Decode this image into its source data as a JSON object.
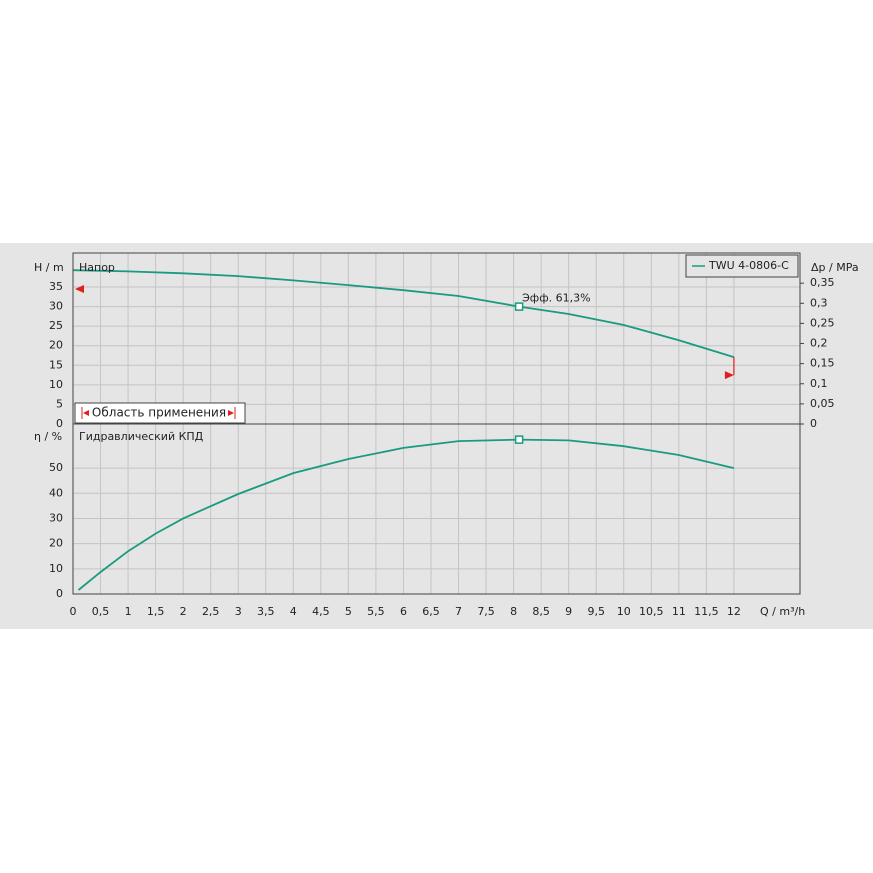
{
  "chart_data": [
    {
      "type": "line",
      "title": "Напор",
      "ylabel": "H / m",
      "y2label": "Δp / MPa",
      "x": [
        0,
        1,
        2,
        3,
        4,
        5,
        6,
        7,
        8.1,
        9,
        10,
        11,
        12
      ],
      "series": [
        {
          "name": "TWU 4-0806-C",
          "color": "#1a9a80",
          "values": [
            39.3,
            39,
            38.5,
            37.8,
            36.7,
            35.5,
            34.2,
            32.7,
            30,
            28.1,
            25.3,
            21.4,
            17.1
          ]
        }
      ],
      "ylim": [
        0,
        43.7
      ],
      "yticks": [
        0,
        5,
        10,
        15,
        20,
        25,
        30,
        35
      ],
      "y2lim": [
        0,
        0.425
      ],
      "y2ticks": [
        0,
        {
          "value": 0.05,
          "label": "0,05"
        },
        {
          "value": 0.1,
          "label": "0,1"
        },
        {
          "value": 0.15,
          "label": "0,15"
        },
        {
          "value": 0.2,
          "label": "0,2"
        },
        {
          "value": 0.25,
          "label": "0,25"
        },
        {
          "value": 0.3,
          "label": "0,3"
        },
        {
          "value": 0.35,
          "label": "0,35"
        }
      ],
      "duty_point": {
        "x": 8.1,
        "y": 30
      },
      "annotation": "Эфф.  61,3%",
      "application_range": {
        "label": "Область применения",
        "color": "#e0201a",
        "markers": [
          {
            "x": 0,
            "y": 34.5
          },
          {
            "x": 12,
            "y": 12.5
          }
        ]
      }
    },
    {
      "type": "line",
      "title": "Гидравлический КПД",
      "ylabel": "η / %",
      "xlabel": "Q / m³/h",
      "x": [
        0.1,
        0.5,
        1,
        1.5,
        2,
        3,
        4,
        5,
        6,
        7,
        8.1,
        9,
        10,
        11,
        12
      ],
      "series": [
        {
          "color": "#1a9a80",
          "values": [
            1.6,
            8.7,
            17,
            24,
            30,
            39.7,
            48,
            53.6,
            58,
            60.7,
            61.3,
            61,
            58.7,
            55.2,
            50
          ]
        }
      ],
      "ylim": [
        0,
        67.5
      ],
      "yticks": [
        0,
        10,
        20,
        30,
        40,
        50
      ],
      "xlim": [
        0,
        13.2
      ],
      "xticks": [
        0,
        {
          "value": 0.5,
          "label": "0,5"
        },
        1,
        {
          "value": 1.5,
          "label": "1,5"
        },
        2,
        {
          "value": 2.5,
          "label": "2,5"
        },
        3,
        {
          "value": 3.5,
          "label": "3,5"
        },
        4,
        {
          "value": 4.5,
          "label": "4,5"
        },
        5,
        {
          "value": 5.5,
          "label": "5,5"
        },
        6,
        {
          "value": 6.5,
          "label": "6,5"
        },
        7,
        {
          "value": 7.5,
          "label": "7,5"
        },
        8,
        {
          "value": 8.5,
          "label": "8,5"
        },
        9,
        {
          "value": 9.5,
          "label": "9,5"
        },
        10,
        {
          "value": 10.5,
          "label": "10,5"
        },
        11,
        {
          "value": 11.5,
          "label": "11,5"
        },
        12
      ],
      "duty_point": {
        "x": 8.1,
        "y": 61.3
      }
    }
  ]
}
